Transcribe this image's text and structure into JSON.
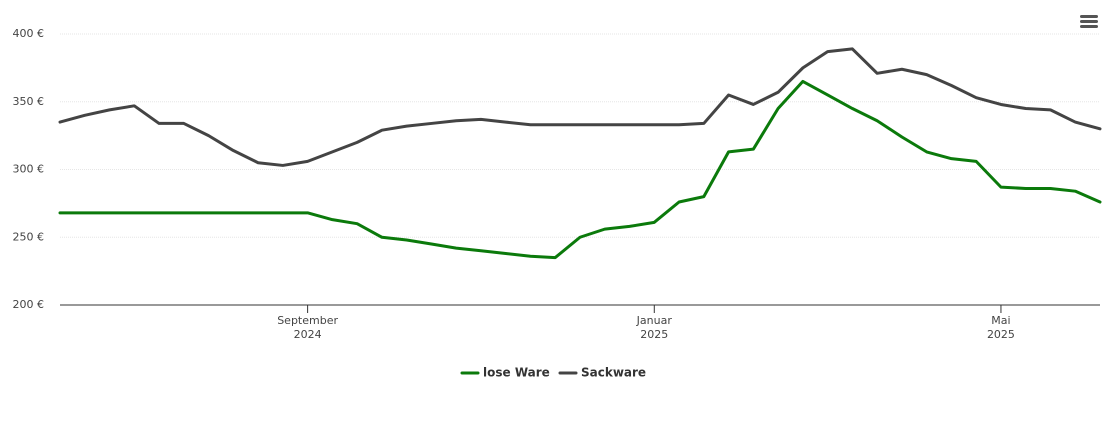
{
  "chart_data": {
    "type": "line",
    "categories": [
      null,
      null,
      null,
      null,
      null,
      null,
      null,
      null,
      null,
      null,
      "September 2024",
      null,
      null,
      null,
      null,
      null,
      null,
      null,
      null,
      null,
      null,
      null,
      null,
      null,
      "Januar 2025",
      null,
      null,
      null,
      null,
      null,
      null,
      null,
      null,
      null,
      null,
      null,
      null,
      null,
      "Mai 2025",
      null,
      null,
      null,
      null
    ],
    "series": [
      {
        "name": "lose Ware",
        "color": "#0b7a0b",
        "values": [
          268,
          268,
          268,
          268,
          268,
          268,
          268,
          268,
          268,
          268,
          268,
          263,
          260,
          250,
          248,
          245,
          242,
          240,
          238,
          236,
          235,
          250,
          256,
          258,
          261,
          276,
          280,
          313,
          315,
          345,
          365,
          355,
          345,
          336,
          324,
          313,
          308,
          306,
          287,
          286,
          286,
          284,
          276
        ]
      },
      {
        "name": "Sackware",
        "color": "#444444",
        "values": [
          335,
          340,
          344,
          347,
          334,
          334,
          325,
          314,
          305,
          303,
          306,
          313,
          320,
          329,
          332,
          334,
          336,
          337,
          335,
          333,
          333,
          333,
          333,
          333,
          333,
          333,
          334,
          355,
          348,
          357,
          375,
          387,
          389,
          371,
          374,
          370,
          362,
          353,
          348,
          345,
          344,
          335,
          330
        ]
      }
    ],
    "ylim": [
      200,
      400
    ],
    "yticks": [
      {
        "value": 200,
        "label": "200 €"
      },
      {
        "value": 250,
        "label": "250 €"
      },
      {
        "value": 300,
        "label": "300 €"
      },
      {
        "value": 350,
        "label": "350 €"
      },
      {
        "value": 400,
        "label": "400 €"
      }
    ],
    "grid": true,
    "legend": "bottom"
  }
}
